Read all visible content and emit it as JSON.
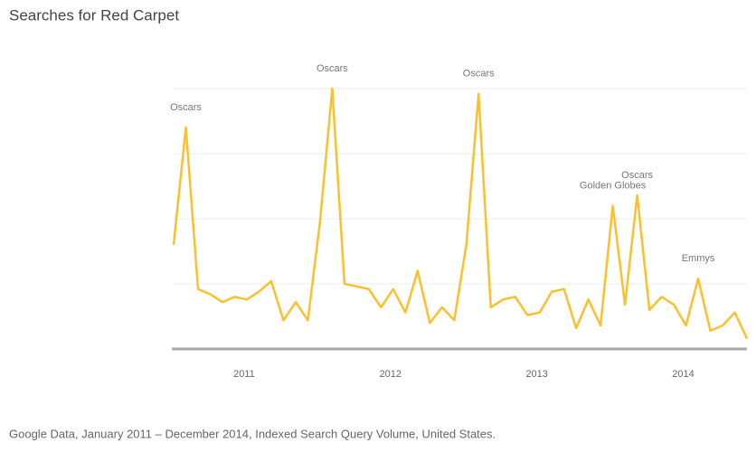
{
  "chart_data": {
    "type": "line",
    "title": "Searches for Red Carpet",
    "footnote": "Google Data, January 2011 – December 2014, Indexed Search Query Volume, United States.",
    "categories": [
      null,
      null,
      null,
      null,
      null,
      null,
      "2011",
      null,
      null,
      null,
      null,
      null,
      null,
      null,
      null,
      null,
      null,
      null,
      "2012",
      null,
      null,
      null,
      null,
      null,
      null,
      null,
      null,
      null,
      null,
      null,
      "2013",
      null,
      null,
      null,
      null,
      null,
      null,
      null,
      null,
      null,
      null,
      null,
      "2014",
      null,
      null,
      null,
      null,
      null
    ],
    "values": [
      40,
      85,
      23,
      21,
      18,
      20,
      19,
      22,
      26,
      11,
      18,
      11,
      49,
      100,
      25,
      24,
      23,
      16,
      23,
      14,
      30,
      10,
      16,
      11,
      40,
      98,
      16,
      19,
      20,
      13,
      14,
      22,
      23,
      8,
      19,
      9,
      55,
      17,
      59,
      15,
      20,
      17,
      9,
      27,
      7,
      9,
      14,
      4
    ],
    "color": "#fbc02d",
    "ylim": [
      0,
      100
    ],
    "yticks": [
      0,
      25,
      50,
      75,
      100
    ],
    "grid": true,
    "annotations": [
      {
        "text": "Oscars",
        "index": 1
      },
      {
        "text": "Oscars",
        "index": 13
      },
      {
        "text": "Oscars",
        "index": 25
      },
      {
        "text": "Golden Globes",
        "index": 36
      },
      {
        "text": "Oscars",
        "index": 38
      },
      {
        "text": "Emmys",
        "index": 43
      }
    ]
  }
}
